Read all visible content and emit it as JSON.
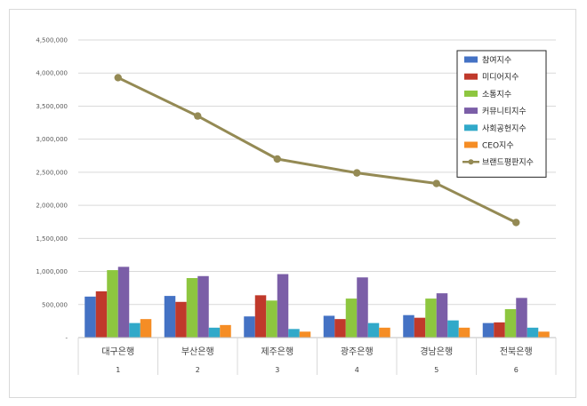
{
  "chart_data": {
    "type": "bar",
    "categories": [
      "대구은행",
      "부산은행",
      "제주은행",
      "광주은행",
      "경남은행",
      "전북은행"
    ],
    "category_index": [
      "1",
      "2",
      "3",
      "4",
      "5",
      "6"
    ],
    "ylim": [
      0,
      4500000
    ],
    "yticks": [
      0,
      500000,
      1000000,
      1500000,
      2000000,
      2500000,
      3000000,
      3500000,
      4000000,
      4500000
    ],
    "ytick_labels": [
      "-",
      "500,000",
      "1,000,000",
      "1,500,000",
      "2,000,000",
      "2,500,000",
      "3,000,000",
      "3,500,000",
      "4,000,000",
      "4,500,000"
    ],
    "grid": true,
    "legend_position": "top-right",
    "series": [
      {
        "name": "참여지수",
        "kind": "bar",
        "color": "#4472c4",
        "values": [
          620000,
          630000,
          320000,
          330000,
          340000,
          220000
        ]
      },
      {
        "name": "미디어지수",
        "kind": "bar",
        "color": "#c0392b",
        "values": [
          700000,
          540000,
          640000,
          280000,
          300000,
          230000
        ]
      },
      {
        "name": "소통지수",
        "kind": "bar",
        "color": "#8dc63f",
        "values": [
          1020000,
          900000,
          560000,
          590000,
          590000,
          430000
        ]
      },
      {
        "name": "커뮤니티지수",
        "kind": "bar",
        "color": "#7b5ea7",
        "values": [
          1070000,
          930000,
          960000,
          910000,
          670000,
          600000
        ]
      },
      {
        "name": "사회공헌지수",
        "kind": "bar",
        "color": "#31a9c9",
        "values": [
          220000,
          150000,
          130000,
          220000,
          260000,
          150000
        ]
      },
      {
        "name": "CEO지수",
        "kind": "bar",
        "color": "#f58d25",
        "values": [
          280000,
          190000,
          90000,
          150000,
          150000,
          90000
        ]
      },
      {
        "name": "브랜드평판지수",
        "kind": "line",
        "color": "#948a54",
        "values": [
          3930000,
          3350000,
          2700000,
          2490000,
          2330000,
          1740000
        ]
      }
    ]
  }
}
